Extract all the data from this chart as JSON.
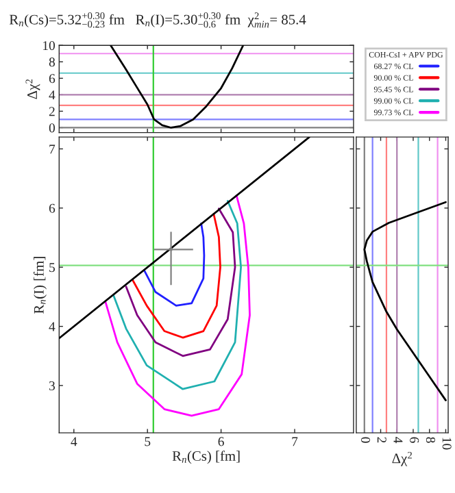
{
  "chart_data": [
    {
      "type": "line",
      "title": "R$_{n}$(Cs)=5.32$^{+0.30}$$_{−0.23}$ fm   R$_{n}$(I)=5.30$^{+0.30}$$_{−0.6}$ fm  χ$^{2}$$_{min}$= 85.4",
      "ylabel": "Δχ$^{2}$",
      "xlim": [
        3.8,
        7.8
      ],
      "xticks": [
        4,
        5,
        6,
        7
      ],
      "ylim": [
        -0.6,
        10
      ],
      "yticks": [
        0,
        2,
        4,
        6,
        8,
        10
      ],
      "tick_labels": "y",
      "series": [
        {
          "color": "#000000",
          "x": [
            4.5,
            4.7,
            4.85,
            5.0,
            5.09,
            5.2,
            5.32,
            5.45,
            5.62,
            5.8,
            6.0,
            6.15,
            6.3
          ],
          "values": [
            10,
            7.2,
            5.0,
            2.8,
            1.0,
            0.3,
            0,
            0.2,
            1.0,
            2.6,
            4.8,
            7.2,
            10
          ]
        }
      ],
      "ref_lines": [
        {
          "axis": "y",
          "value": 0,
          "color": "#808080"
        },
        {
          "axis": "y",
          "value": 1,
          "color": "#8080ff"
        },
        {
          "axis": "y",
          "value": 2.71,
          "color": "#ff8080"
        },
        {
          "axis": "y",
          "value": 4,
          "color": "#b080b0"
        },
        {
          "axis": "y",
          "value": 6.63,
          "color": "#60c8c8"
        },
        {
          "axis": "y",
          "value": 9,
          "color": "#f090f0"
        },
        {
          "axis": "x",
          "value": 5.08,
          "color": "#33cc33"
        }
      ]
    },
    {
      "type": "line",
      "xlabel": "R$_{n}$(Cs) [fm]",
      "ylabel": "R$_{n}$(I) [fm]",
      "xlim": [
        3.8,
        7.8
      ],
      "xticks": [
        4,
        5,
        6,
        7
      ],
      "ylim": [
        2.2,
        7.2
      ],
      "yticks": [
        3,
        4,
        5,
        6,
        7
      ],
      "legend": "top right",
      "legend_title": "COH-CsI + APV PDG",
      "series": [
        {
          "name": "68.27 % CL",
          "color": "#2020ff",
          "x": [
            4.955,
            5.11,
            5.39,
            5.6,
            5.76,
            5.77,
            5.76,
            5.73
          ],
          "values": [
            4.95,
            4.58,
            4.35,
            4.39,
            4.81,
            5.2,
            5.51,
            5.74
          ]
        },
        {
          "name": "90.00 % CL",
          "color": "#ff0000",
          "x": [
            4.8,
            4.99,
            5.23,
            5.48,
            5.76,
            5.94,
            5.99,
            5.97,
            5.9
          ],
          "values": [
            4.78,
            4.35,
            3.92,
            3.81,
            3.92,
            4.35,
            5.0,
            5.51,
            5.9
          ]
        },
        {
          "name": "95.45 % CL",
          "color": "#800080",
          "x": [
            4.71,
            4.86,
            5.11,
            5.48,
            5.85,
            6.09,
            6.19,
            6.16,
            5.97
          ],
          "values": [
            4.67,
            4.19,
            3.73,
            3.5,
            3.61,
            4.12,
            5.0,
            5.59,
            5.99
          ]
        },
        {
          "name": "99.00 % CL",
          "color": "#20b0b0",
          "x": [
            4.54,
            4.71,
            4.99,
            5.48,
            5.91,
            6.19,
            6.27,
            6.22,
            6.09
          ],
          "values": [
            4.52,
            3.96,
            3.34,
            2.94,
            3.07,
            3.73,
            5.0,
            5.74,
            6.12
          ]
        },
        {
          "name": "99.73 % CL",
          "color": "#ff00ff",
          "x": [
            4.43,
            4.59,
            4.86,
            5.23,
            5.6,
            5.97,
            6.28,
            6.39,
            6.37,
            6.31,
            6.21
          ],
          "values": [
            4.41,
            3.73,
            3.03,
            2.6,
            2.49,
            2.6,
            3.19,
            4.19,
            5.0,
            5.74,
            6.21
          ]
        },
        {
          "color": "#000000",
          "x": [
            3.8,
            7.2
          ],
          "values": [
            3.8,
            7.2
          ]
        },
        {
          "type": "scatter",
          "marker": "circle",
          "color": "#808080",
          "x": [
            5.32
          ],
          "values": [
            5.3
          ],
          "errors": [
            [
              4.7,
              5.6
            ]
          ],
          "xerrors": [
            [
              5.09,
              5.62
            ]
          ]
        }
      ],
      "ref_lines": [
        {
          "axis": "x",
          "value": 5.08,
          "color": "#33cc33"
        },
        {
          "axis": "y",
          "value": 5.03,
          "color": "#80e080"
        }
      ]
    },
    {
      "type": "line",
      "xlabel": "Δχ$^{2}$",
      "xlim": [
        -1,
        10.3
      ],
      "xticks": [
        0,
        2,
        4,
        6,
        8,
        10
      ],
      "ylim": [
        2.2,
        7.2
      ],
      "yticks": [
        3,
        4,
        5,
        6,
        7
      ],
      "tick_labels": "x",
      "series": [
        {
          "color": "#000000",
          "x": [
            10,
            6,
            3,
            1,
            0.3,
            0,
            0.3,
            1,
            2.7,
            4,
            6,
            8,
            10
          ],
          "values": [
            6.1,
            5.9,
            5.75,
            5.6,
            5.45,
            5.3,
            5.1,
            4.75,
            4.25,
            3.95,
            3.55,
            3.15,
            2.75
          ]
        }
      ],
      "ref_lines": [
        {
          "axis": "x",
          "value": 0,
          "color": "#808080"
        },
        {
          "axis": "x",
          "value": 1,
          "color": "#8080ff"
        },
        {
          "axis": "x",
          "value": 2.71,
          "color": "#ff8080"
        },
        {
          "axis": "x",
          "value": 4,
          "color": "#b080b0"
        },
        {
          "axis": "x",
          "value": 6.63,
          "color": "#60c8c8"
        },
        {
          "axis": "x",
          "value": 9,
          "color": "#f090f0"
        },
        {
          "axis": "y",
          "value": 5.03,
          "color": "#80e080"
        }
      ]
    }
  ]
}
